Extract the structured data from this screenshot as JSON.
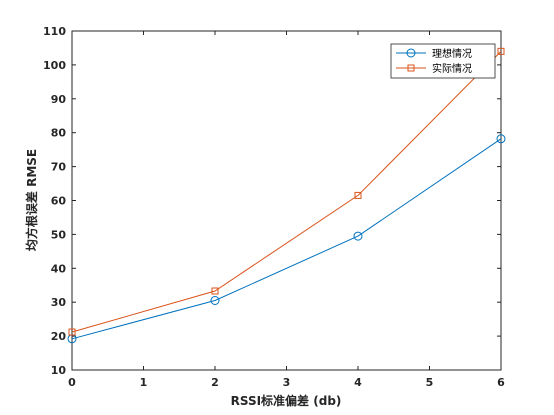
{
  "chart_data": {
    "type": "line",
    "xlabel": "RSSI标准偏差 (db)",
    "ylabel": "均方根误差 RMSE",
    "xlim": [
      0,
      6
    ],
    "ylim": [
      10,
      110
    ],
    "xticks": [
      0,
      1,
      2,
      3,
      4,
      5,
      6
    ],
    "yticks": [
      10,
      20,
      30,
      40,
      50,
      60,
      70,
      80,
      90,
      100,
      110
    ],
    "grid": false,
    "legend_position": "top-right",
    "series": [
      {
        "name": "理想情况",
        "color": "#0072BD",
        "marker": "circle",
        "x": [
          0,
          2,
          4,
          6
        ],
        "y": [
          19.2,
          30.5,
          49.5,
          78.2
        ]
      },
      {
        "name": "实际情况",
        "color": "#D95319",
        "marker": "square",
        "x": [
          0,
          2,
          4,
          6
        ],
        "y": [
          21.2,
          33.3,
          61.5,
          104
        ]
      }
    ]
  }
}
